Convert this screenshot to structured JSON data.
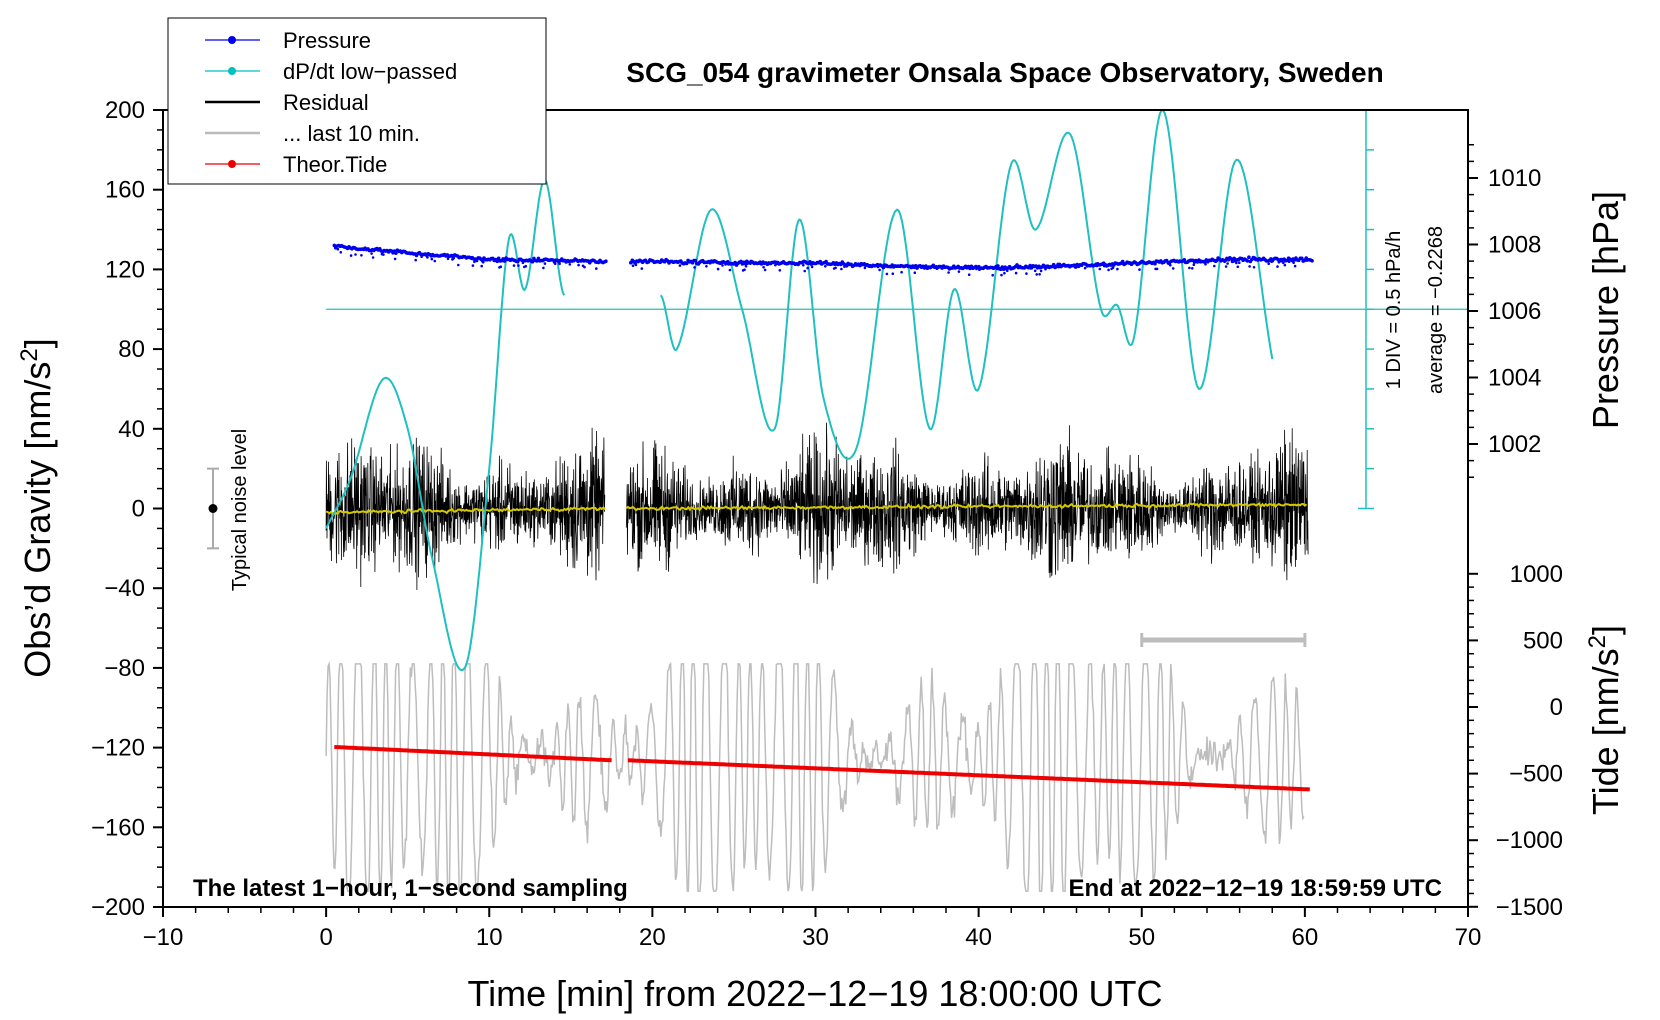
{
  "chart_data": {
    "type": "line",
    "title": "SCG_054 gravimeter Onsala Space Observatory, Sweden",
    "xlabel": "Time [min] from 2022−12−19 18:00:00 UTC",
    "ylabel": "Obs’d Gravity [nm/s²]",
    "ylabel_right_top": "Pressure [hPa]",
    "ylabel_right_bottom": "Tide [nm/s²]",
    "xlim": [
      -10,
      70
    ],
    "ylim": [
      -200,
      200
    ],
    "pressure_ylim": [
      1000,
      1012
    ],
    "tide_ylim": [
      -1500,
      1500
    ],
    "x_ticks": [
      "−10",
      "0",
      "10",
      "20",
      "30",
      "40",
      "50",
      "60",
      "70"
    ],
    "y_ticks": [
      "200",
      "160",
      "120",
      "80",
      "40",
      "0",
      "−40",
      "−80",
      "−120",
      "−160",
      "−200"
    ],
    "pressure_ticks": [
      "1010",
      "1008",
      "1006",
      "1004",
      "1002"
    ],
    "tide_ticks": [
      "1000",
      "500",
      "0",
      "−500",
      "−1000",
      "−1500"
    ],
    "legend": [
      {
        "label": "Pressure",
        "color": "#0000ee",
        "marker": true
      },
      {
        "label": "dP/dt low−passed",
        "color": "#00c0c0",
        "marker": true
      },
      {
        "label": "Residual",
        "color": "#000000",
        "marker": false
      },
      {
        "label": "... last 10 min.",
        "color": "#bbbbbb",
        "marker": false
      },
      {
        "label": "Theor.Tide",
        "color": "#ee0000",
        "marker": true
      }
    ],
    "annotations": {
      "noise": "Typical noise level",
      "div": "1 DIV = 0.5 hPa/h",
      "average": "average = −0.2268",
      "bottom_left": "The latest 1−hour, 1−second sampling",
      "bottom_right": "End at 2022−12−19 18:59:59 UTC"
    },
    "gap_minutes": [
      17.2,
      18.3
    ],
    "series": [
      {
        "name": "Pressure",
        "unit": "hPa",
        "x": [
          0.5,
          5,
          10,
          17,
          19,
          25,
          30,
          35,
          40,
          45,
          50,
          55,
          60.5
        ],
        "values": [
          1007.95,
          1007.75,
          1007.55,
          1007.5,
          1007.5,
          1007.45,
          1007.45,
          1007.35,
          1007.3,
          1007.35,
          1007.45,
          1007.55,
          1007.55
        ]
      },
      {
        "name": "dP/dt low-passed",
        "unit": "gravity axis",
        "x": [
          0,
          1.5,
          3.5,
          5,
          6.5,
          8.5,
          10,
          11.2,
          12.2,
          13.4,
          14.6,
          20.5,
          21.5,
          23.6,
          25.5,
          27.5,
          29,
          30.5,
          32.5,
          35,
          37,
          38.5,
          40,
          42,
          43.5,
          45.6,
          47.5,
          48.5,
          49.5,
          51.3,
          53.5,
          55.8,
          58
        ],
        "values": [
          -10,
          15,
          65,
          40,
          -25,
          -80,
          20,
          135,
          110,
          165,
          107,
          107,
          80,
          150,
          100,
          40,
          145,
          55,
          30,
          150,
          40,
          110,
          60,
          173,
          140,
          188,
          100,
          102,
          85,
          200,
          60,
          175,
          75
        ]
      },
      {
        "name": "Residual (smoothed)",
        "unit": "nm/s²",
        "x": [
          0,
          17,
          19,
          60.2
        ],
        "values": [
          -2,
          0,
          0,
          2
        ]
      },
      {
        "name": "Theor.Tide",
        "unit": "nm/s²",
        "x": [
          0.5,
          17.5,
          18.5,
          60.5
        ],
        "values": [
          -300,
          -400,
          -400,
          -620
        ]
      }
    ]
  }
}
